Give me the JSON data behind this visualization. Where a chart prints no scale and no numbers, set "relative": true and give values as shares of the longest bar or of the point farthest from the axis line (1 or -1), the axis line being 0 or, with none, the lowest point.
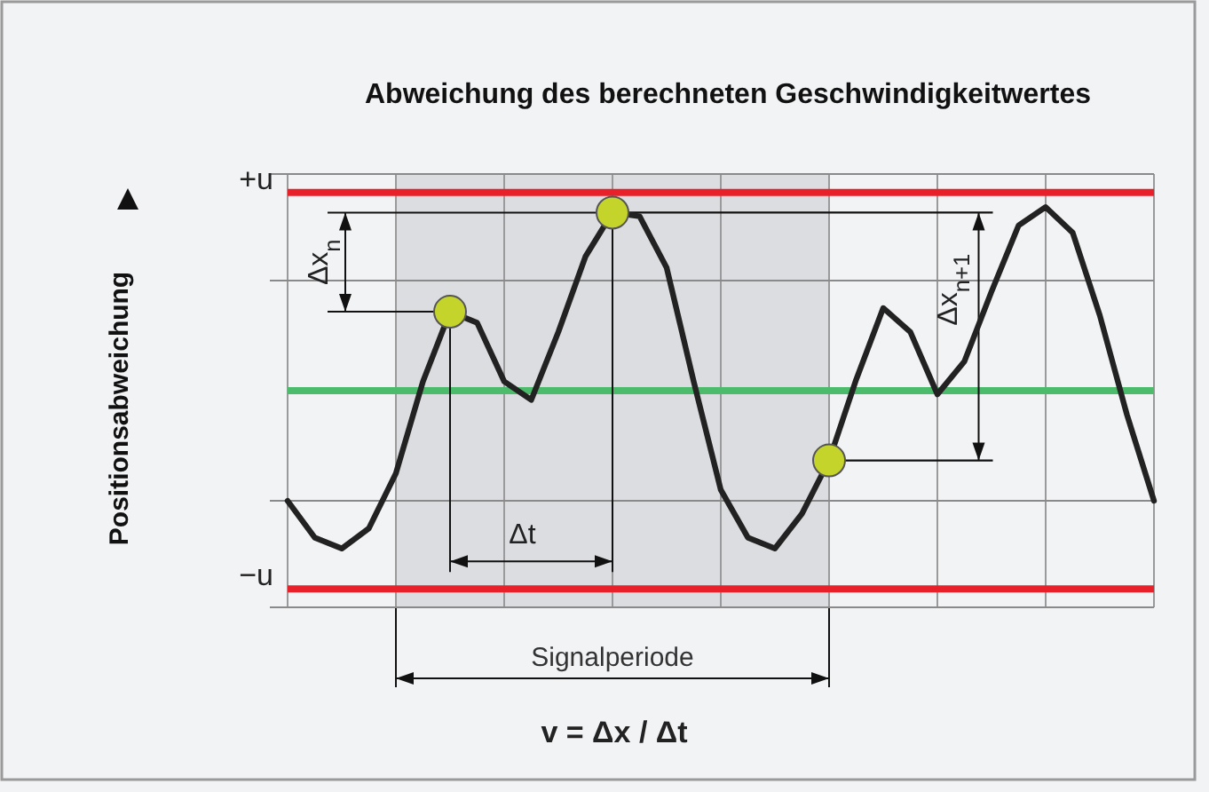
{
  "chart_data": {
    "type": "line",
    "title": "Abweichung des berechneten Geschwindigkeitwertes",
    "relative": true,
    "categories": [
      null,
      null,
      null,
      null,
      null,
      null,
      null,
      null,
      null,
      null,
      null,
      null,
      null,
      null,
      null,
      null,
      null,
      null,
      null,
      null,
      null,
      null,
      null,
      null,
      null,
      null,
      null,
      null,
      null,
      null,
      null,
      null,
      null
    ],
    "grid": true,
    "marker": "none",
    "line_style": "solid",
    "series": [
      {
        "color": "#222222",
        "values": [
          -0.6,
          -0.8,
          -0.86,
          -0.75,
          -0.45,
          0.05,
          0.43,
          0.37,
          0.05,
          -0.05,
          0.32,
          0.73,
          0.97,
          0.95,
          0.67,
          0.05,
          -0.54,
          -0.8,
          -0.86,
          -0.67,
          -0.38,
          0.06,
          0.45,
          0.32,
          -0.02,
          0.16,
          0.54,
          0.9,
          1,
          0.86,
          0.41,
          -0.13,
          -0.6
        ]
      }
    ],
    "ref_lines": [
      {
        "axis": "y",
        "value": 1.08,
        "label": "+u",
        "color": "#e8202a"
      },
      {
        "axis": "y",
        "value": -1.08,
        "label": "−u",
        "color": "#e8202a"
      },
      {
        "axis": "y",
        "value": 0,
        "color": "#4cbb6c"
      },
      {
        "axis": "y",
        "value": 0.6,
        "color": "#8a8a8a"
      },
      {
        "axis": "y",
        "value": -0.6,
        "color": "#8a8a8a"
      }
    ],
    "annotations": [
      "Δx$_{n}$",
      "Δt",
      "Δx$_{n+1}$",
      "v = Δx / Δt",
      "Signalperiode",
      "Positionsabweichung"
    ]
  }
}
